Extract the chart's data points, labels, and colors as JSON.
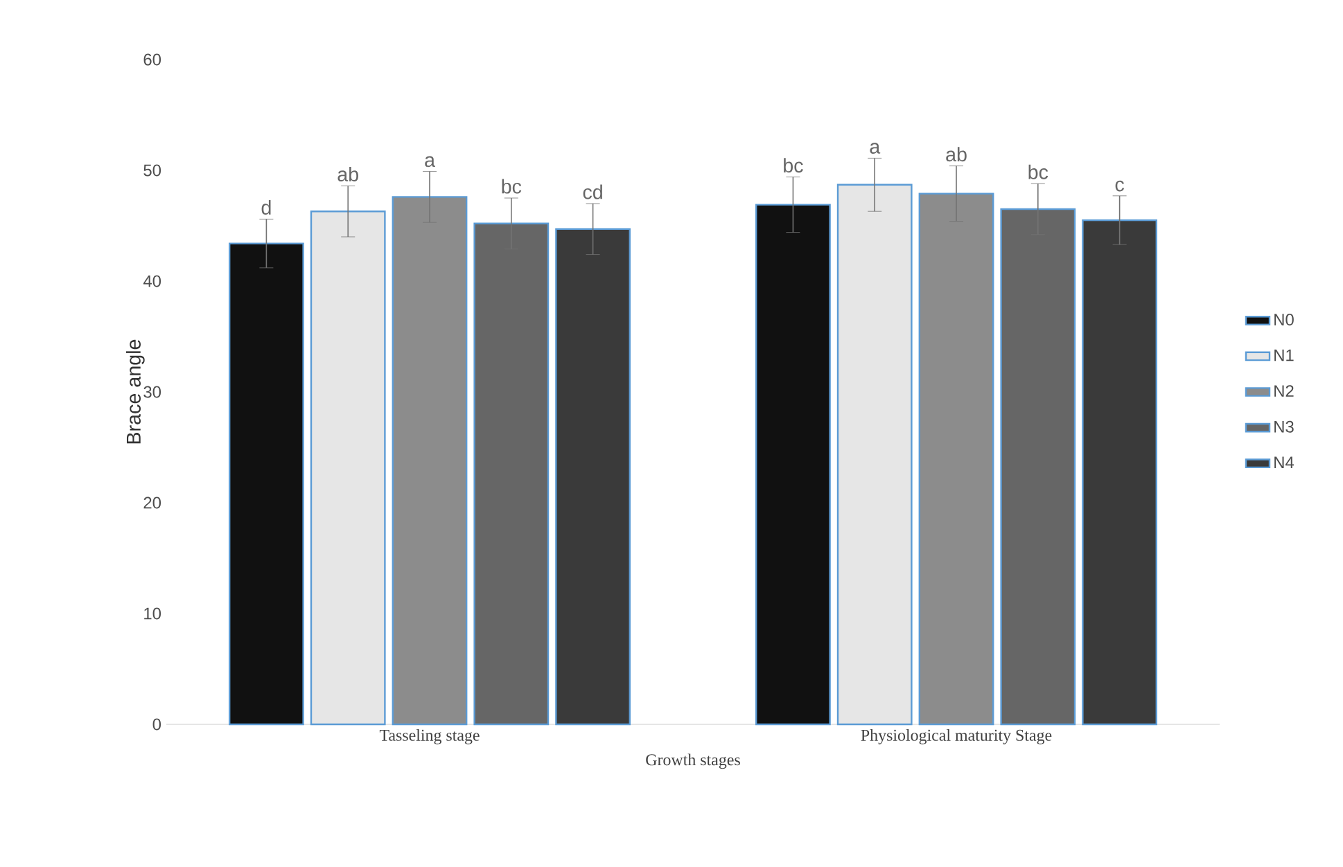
{
  "chart_data": {
    "type": "bar",
    "xlabel": "Growth stages",
    "ylabel": "Brace angle",
    "categories": [
      "Tasseling stage",
      "Physiological  maturity Stage"
    ],
    "series": [
      {
        "name": "N0",
        "color": "#111111",
        "values": [
          43.4,
          46.9
        ],
        "errors": [
          2.2,
          2.5
        ]
      },
      {
        "name": "N1",
        "color": "#e6e6e6",
        "values": [
          46.3,
          48.7
        ],
        "errors": [
          2.3,
          2.4
        ]
      },
      {
        "name": "N2",
        "color": "#8c8c8c",
        "values": [
          47.6,
          47.9
        ],
        "errors": [
          2.3,
          2.5
        ]
      },
      {
        "name": "N3",
        "color": "#666666",
        "values": [
          45.2,
          46.5
        ],
        "errors": [
          2.3,
          2.3
        ]
      },
      {
        "name": "N4",
        "color": "#3a3a3a",
        "values": [
          44.7,
          45.5
        ],
        "errors": [
          2.3,
          2.2
        ]
      }
    ],
    "annotations": [
      "d",
      "ab",
      "a",
      "bc",
      "cd",
      "bc",
      "a",
      "ab",
      "bc",
      "c"
    ],
    "ylim": [
      0,
      60
    ],
    "yticks": [
      0,
      10,
      20,
      30,
      40,
      50,
      60
    ],
    "grid": false,
    "legend": "right"
  }
}
